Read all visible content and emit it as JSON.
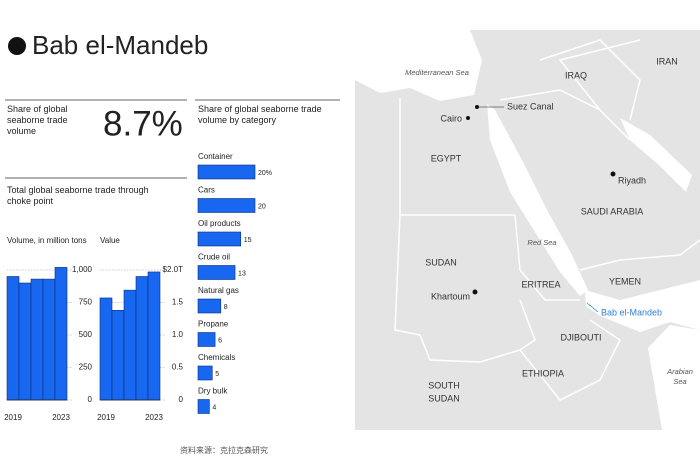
{
  "title": "Bab el-Mandeb",
  "stat": {
    "label": "Share of global seaborne trade volume",
    "value": "8.7%"
  },
  "section_title": "Total global seaborne trade through choke point",
  "chart_data": [
    {
      "type": "bar",
      "title": "Volume, in million tons",
      "categories": [
        "2019",
        null,
        null,
        null,
        "2023"
      ],
      "values": [
        950,
        900,
        930,
        930,
        1020
      ],
      "color": "#1767f0",
      "ylim": [
        0,
        1050
      ],
      "yticks": [
        0,
        250,
        500,
        750,
        {
          "value": 1000,
          "label": "1,000"
        }
      ],
      "grid": true
    },
    {
      "type": "bar",
      "title": "Value",
      "categories": [
        "2019",
        null,
        null,
        null,
        "2023"
      ],
      "values": [
        1.57,
        1.38,
        1.69,
        1.9,
        1.97
      ],
      "color": "#1767f0",
      "ylim": [
        0,
        2.05
      ],
      "yticks": [
        0,
        0.5,
        {
          "value": 1,
          "label": "1.0"
        },
        1.5,
        {
          "value": 2,
          "label": "$2.0T"
        }
      ],
      "grid": true
    },
    {
      "type": "hbar",
      "title": "Share of global seaborne trade volume by category",
      "categories": [
        "Container",
        "Cars",
        "Oil products",
        "Crude oil",
        "Natural gas",
        "Propane",
        "Chemicals",
        "Dry bulk"
      ],
      "values": [
        20,
        20,
        15,
        13,
        8,
        6,
        5,
        4
      ],
      "value_labels": [
        "20%",
        "20",
        "15",
        "13",
        "8",
        "6",
        "5",
        "4"
      ],
      "color": "#1767f0",
      "xlim": [
        0,
        20
      ]
    }
  ],
  "source": "资料来源：克拉克森研究",
  "map": {
    "labels": [
      "Mediterranean Sea",
      "IRAQ",
      "IRAN",
      "Suez Canal",
      "Cairo",
      "EGYPT",
      "Riyadh",
      "SAUDI ARABIA",
      "Red Sea",
      "SUDAN",
      "ERITREA",
      "YEMEN",
      "Khartoum",
      "Bab el-Mandeb",
      "DJIBOUTI",
      [
        "SOUTH",
        "SUDAN"
      ],
      "ETHIOPIA",
      [
        "Arabian",
        "Sea"
      ]
    ]
  }
}
